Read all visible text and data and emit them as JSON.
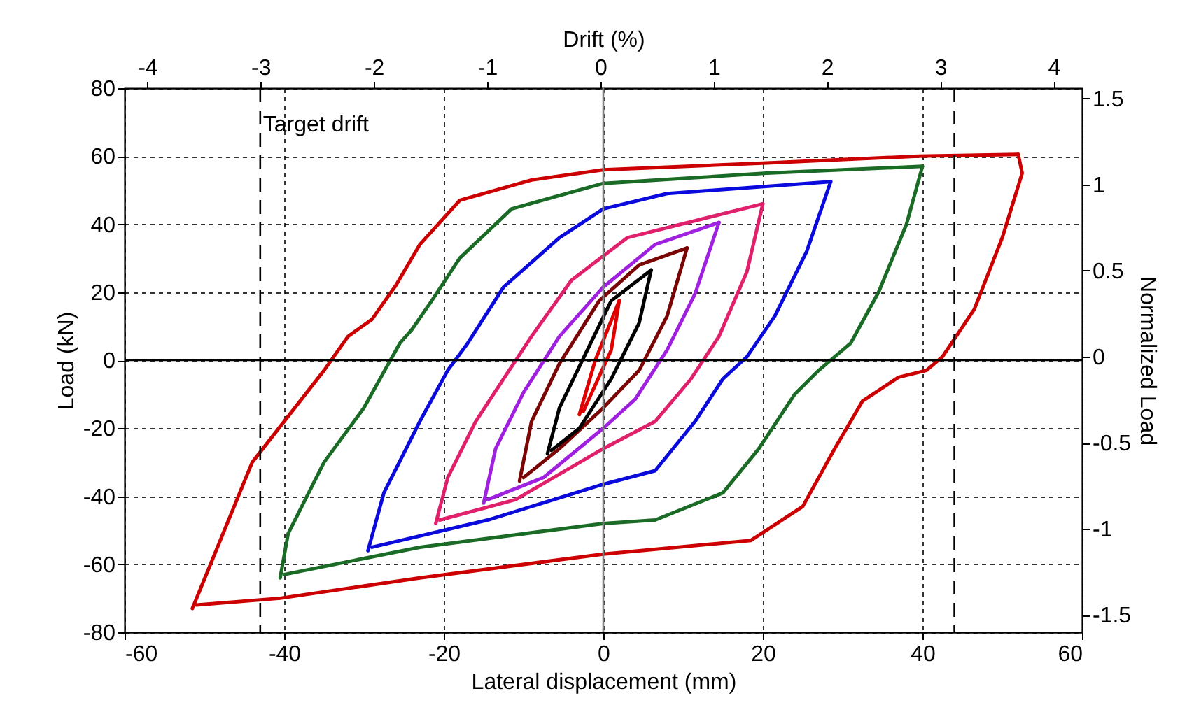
{
  "chart_data": {
    "type": "line",
    "xlabel": "Lateral displacement  (mm)",
    "ylabel": "Load (kN)",
    "x2label": "Drift (%)",
    "y2label": "Normalized Load",
    "xlim": [
      -60,
      60
    ],
    "xticks": [
      -60,
      -40,
      -20,
      0,
      20,
      40,
      60
    ],
    "ylim": [
      -80,
      80
    ],
    "yticks": [
      -80,
      -60,
      -40,
      -20,
      0,
      20,
      40,
      60,
      80
    ],
    "x2lim": [
      -4.2,
      4.25
    ],
    "x2ticks": [
      -4,
      -3,
      -2,
      -1,
      0,
      1,
      2,
      3,
      4
    ],
    "y2lim": [
      -1.6,
      1.56
    ],
    "y2ticks": [
      -1.5,
      -1,
      -0.5,
      0,
      0.5,
      1,
      1.5
    ],
    "grid": true,
    "legend": false,
    "line_style": "solid",
    "marker": "none",
    "ref_lines": [
      {
        "axis": "x",
        "value": -43,
        "label": "Target drift",
        "line_style": "dashed",
        "color": "#000000"
      },
      {
        "axis": "x",
        "value": 44,
        "line_style": "dashed",
        "color": "#000000"
      },
      {
        "axis": "x",
        "value": 0,
        "color": "#808080"
      },
      {
        "axis": "y",
        "value": 0,
        "color": "#000000"
      }
    ],
    "series": [
      {
        "color": "#cc0000",
        "x": [
          -51.5,
          -44,
          -38,
          -35,
          -32,
          -29,
          -26,
          -23,
          -18,
          -9,
          0,
          20.5,
          39.5,
          52
        ],
        "values": [
          -73,
          -30,
          -12,
          -3,
          7,
          12,
          22,
          34,
          47,
          53,
          56,
          58,
          60,
          60.5
        ]
      },
      {
        "color": "#cc0000",
        "x": [
          52,
          52.5,
          50,
          46.5,
          42.5,
          40.5,
          37,
          32.5,
          29,
          25,
          18.5,
          0,
          -23,
          -40.5,
          -51
        ],
        "values": [
          60.5,
          55,
          36,
          15,
          1,
          -3,
          -5,
          -12,
          -26,
          -43,
          -53,
          -57,
          -64,
          -70,
          -72
        ]
      },
      {
        "color": "#1a6b25",
        "x": [
          -40.5,
          -39.5,
          -35,
          -30,
          -25.5,
          -24,
          -21.5,
          -18,
          -11.5,
          0,
          20.5,
          40
        ],
        "values": [
          -64,
          -51,
          -30,
          -14,
          5,
          9,
          17.5,
          30,
          44.5,
          52,
          55,
          57
        ]
      },
      {
        "color": "#1a6b25",
        "x": [
          40,
          38,
          34.5,
          31,
          27,
          24,
          19.5,
          15,
          6.5,
          0,
          -23,
          -40
        ],
        "values": [
          57,
          40,
          20,
          5,
          -3,
          -10,
          -26,
          -39,
          -47,
          -48,
          -55,
          -63
        ]
      },
      {
        "color": "#0a0adc",
        "x": [
          -29.5,
          -27.5,
          -23,
          -19.5,
          -17,
          -12.5,
          -5.5,
          0,
          8,
          28.5
        ],
        "values": [
          -56,
          -39,
          -18,
          -3,
          5,
          21.5,
          36,
          44.5,
          49,
          52.5
        ]
      },
      {
        "color": "#0a0adc",
        "x": [
          28.5,
          25.5,
          21.5,
          18,
          15,
          11.5,
          6.5,
          0,
          -14.5,
          -29
        ],
        "values": [
          52.5,
          32,
          13,
          1,
          -5.5,
          -18,
          -32.5,
          -36.5,
          -47,
          -55
        ]
      },
      {
        "color": "#e0206a",
        "x": [
          -21,
          -19.5,
          -16,
          -12.5,
          -9,
          -4,
          3,
          20
        ],
        "values": [
          -48,
          -34.5,
          -18,
          -5.5,
          7,
          23.5,
          36,
          46
        ]
      },
      {
        "color": "#e0206a",
        "x": [
          20,
          18,
          14.5,
          11,
          6.5,
          0,
          -11,
          -20.5
        ],
        "values": [
          46,
          26,
          7,
          -5.5,
          -18,
          -26,
          -41,
          -47
        ]
      },
      {
        "color": "#a020e0",
        "x": [
          -15,
          -13.5,
          -10,
          -5.5,
          0,
          6.5,
          14.5
        ],
        "values": [
          -42,
          -26,
          -9.5,
          7,
          21.5,
          34,
          40.5
        ]
      },
      {
        "color": "#a020e0",
        "x": [
          14.5,
          11.5,
          8,
          4,
          0,
          -7.5,
          -14.5
        ],
        "values": [
          40.5,
          19.5,
          3,
          -11.5,
          -20,
          -34.5,
          -41
        ]
      },
      {
        "color": "#7a0505",
        "x": [
          -10.5,
          -9,
          -5.5,
          -0.5,
          4.5,
          10.5
        ],
        "values": [
          -35.5,
          -18,
          -1,
          17.5,
          28,
          33
        ]
      },
      {
        "color": "#7a0505",
        "x": [
          10.5,
          8,
          4.5,
          0,
          -5.5,
          -10
        ],
        "values": [
          33,
          13,
          -3,
          -14,
          -26,
          -34.5
        ]
      },
      {
        "color": "#000000",
        "x": [
          -7,
          -5.5,
          -2,
          1,
          6
        ],
        "values": [
          -27.5,
          -14,
          3,
          17.5,
          26.5
        ]
      },
      {
        "color": "#000000",
        "x": [
          6,
          4.5,
          1,
          -3,
          -6.5
        ],
        "values": [
          26.5,
          11,
          -5.5,
          -20,
          -26.5
        ]
      },
      {
        "color": "#e00000",
        "x": [
          -3,
          -1,
          2
        ],
        "values": [
          -16,
          0,
          17.5
        ]
      },
      {
        "color": "#e00000",
        "x": [
          2,
          1,
          -2.5
        ],
        "values": [
          17.5,
          3,
          -15
        ]
      }
    ]
  }
}
